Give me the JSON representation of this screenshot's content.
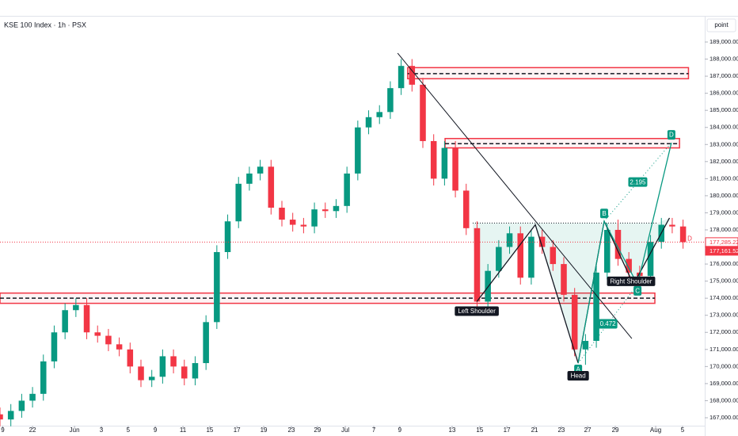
{
  "chart_data": {
    "type": "candlestick",
    "title": "KSE 100 Index · 1h · PSX",
    "scale_unit_button": "point",
    "up_color": "#089981",
    "down_color": "#f23645",
    "x": [
      0,
      4,
      8,
      12,
      16,
      20,
      24,
      28,
      32,
      36,
      40,
      44,
      48,
      52,
      56,
      60,
      64,
      68,
      72,
      76,
      80,
      84,
      88,
      92,
      96,
      100,
      104,
      108,
      112,
      116,
      120,
      124,
      128,
      132,
      136,
      140,
      144,
      148,
      152,
      156,
      160,
      164,
      168,
      172,
      176,
      180,
      184,
      188,
      192,
      196,
      200,
      204,
      208,
      212,
      216,
      220,
      224,
      228,
      232,
      236,
      240,
      244,
      248,
      252
    ],
    "open": [
      167200,
      166900,
      167400,
      168000,
      168400,
      170300,
      172000,
      173300,
      173600,
      172000,
      171800,
      171300,
      171000,
      170000,
      169200,
      169400,
      170600,
      170000,
      169300,
      170200,
      172600,
      176700,
      178500,
      180700,
      181300,
      181700,
      179300,
      178600,
      178300,
      178200,
      179200,
      179100,
      179400,
      181300,
      184000,
      184600,
      184900,
      186300,
      187600,
      186500,
      183200,
      181000,
      182800,
      180300,
      178100,
      173800,
      175600,
      177000,
      177800,
      175200,
      177600,
      177000,
      176000,
      174200,
      171000,
      171500,
      175500,
      178000,
      176300,
      175500,
      175300,
      177300,
      178300,
      178200
    ],
    "high": [
      167600,
      167800,
      168400,
      168800,
      170700,
      172400,
      173700,
      174000,
      174000,
      172400,
      172200,
      171700,
      171400,
      170400,
      169800,
      171000,
      171000,
      170400,
      170600,
      173000,
      177100,
      178900,
      181100,
      181700,
      182100,
      182100,
      179700,
      179000,
      178700,
      179600,
      179600,
      179800,
      181700,
      184400,
      185000,
      185300,
      186700,
      188000,
      188000,
      186900,
      183600,
      183200,
      183200,
      180700,
      178500,
      176000,
      177400,
      178200,
      178200,
      178000,
      178000,
      177400,
      176400,
      174600,
      171900,
      175900,
      178400,
      178600,
      176700,
      175900,
      177700,
      178700,
      178700,
      178600
    ],
    "low": [
      166500,
      166500,
      167000,
      167600,
      168000,
      169900,
      171600,
      172900,
      171600,
      171400,
      170900,
      170600,
      169600,
      168800,
      168800,
      169000,
      169600,
      168900,
      168900,
      169800,
      172200,
      176300,
      178100,
      180300,
      180900,
      178900,
      178200,
      177900,
      177800,
      177800,
      178700,
      178700,
      179000,
      180900,
      183600,
      184200,
      184500,
      185900,
      186100,
      182800,
      180600,
      180600,
      179900,
      177700,
      173400,
      173400,
      175200,
      176600,
      174800,
      174800,
      176600,
      175600,
      173800,
      170600,
      170100,
      171100,
      175100,
      175900,
      175100,
      174900,
      174900,
      176900,
      177800,
      176900
    ],
    "close": [
      166900,
      167400,
      168000,
      168400,
      170300,
      172000,
      173300,
      173600,
      172000,
      171800,
      171300,
      171000,
      170000,
      169200,
      169400,
      170600,
      170000,
      169300,
      170200,
      172600,
      176700,
      178500,
      180700,
      181300,
      181700,
      179300,
      178600,
      178300,
      178200,
      179200,
      179100,
      179400,
      181300,
      184000,
      184600,
      184900,
      186300,
      187600,
      186500,
      183200,
      181000,
      182800,
      180300,
      178100,
      173800,
      175600,
      177000,
      177800,
      175200,
      177600,
      177000,
      176000,
      174200,
      171000,
      171500,
      175500,
      178000,
      176300,
      175500,
      175300,
      177300,
      178300,
      178200,
      177285.22
    ],
    "xlim": [
      0,
      260
    ],
    "xticks": [
      {
        "value": 1,
        "label": "9"
      },
      {
        "value": 12,
        "label": "22"
      },
      {
        "value": 27.5,
        "label": "Jun"
      },
      {
        "value": 37.4,
        "label": "3"
      },
      {
        "value": 47.3,
        "label": "5"
      },
      {
        "value": 57.3,
        "label": "9"
      },
      {
        "value": 67.5,
        "label": "11"
      },
      {
        "value": 77.4,
        "label": "15"
      },
      {
        "value": 87.4,
        "label": "17"
      },
      {
        "value": 97.3,
        "label": "19"
      },
      {
        "value": 107.5,
        "label": "23"
      },
      {
        "value": 117.1,
        "label": "29"
      },
      {
        "value": 127.4,
        "label": "Jul"
      },
      {
        "value": 137.9,
        "label": "7"
      },
      {
        "value": 147.5,
        "label": "9"
      },
      {
        "value": 166.8,
        "label": "13"
      },
      {
        "value": 177,
        "label": "15"
      },
      {
        "value": 187,
        "label": "17"
      },
      {
        "value": 197.2,
        "label": "21"
      },
      {
        "value": 207.1,
        "label": "23"
      },
      {
        "value": 216.8,
        "label": "27"
      },
      {
        "value": 227,
        "label": "29"
      },
      {
        "value": 241.9,
        "label": "Aug"
      },
      {
        "value": 251.8,
        "label": "5"
      }
    ],
    "ylim": [
      166535,
      190439
    ],
    "yticks": [
      {
        "value": 167000,
        "label": "167,000.00"
      },
      {
        "value": 168000,
        "label": "168,000.00"
      },
      {
        "value": 169000,
        "label": "169,000.00"
      },
      {
        "value": 170000,
        "label": "170,000.00"
      },
      {
        "value": 171000,
        "label": "171,000.00"
      },
      {
        "value": 172000,
        "label": "172,000.00"
      },
      {
        "value": 173000,
        "label": "173,000.00"
      },
      {
        "value": 174000,
        "label": "174,000.00"
      },
      {
        "value": 175000,
        "label": "175,000.00"
      },
      {
        "value": 176000,
        "label": "176,000.00"
      },
      {
        "value": 177000,
        "label": "177,000.00"
      },
      {
        "value": 178000,
        "label": "178,000.00"
      },
      {
        "value": 179000,
        "label": "179,000.00"
      },
      {
        "value": 180000,
        "label": "180,000.00"
      },
      {
        "value": 181000,
        "label": "181,000.00"
      },
      {
        "value": 182000,
        "label": "182,000.00"
      },
      {
        "value": 183000,
        "label": "183,000.00"
      },
      {
        "value": 184000,
        "label": "184,000.00"
      },
      {
        "value": 185000,
        "label": "185,000.00"
      },
      {
        "value": 186000,
        "label": "186,000.00"
      },
      {
        "value": 187000,
        "label": "187,000.00"
      },
      {
        "value": 188000,
        "label": "188,000.00"
      },
      {
        "value": 189000,
        "label": "189,000.00"
      }
    ],
    "price_labels": [
      {
        "value": 177285.22,
        "label": "177,285.22"
      },
      {
        "value": 177161.52,
        "label": "177,161.52"
      }
    ],
    "alert_label": "D",
    "zones": [
      {
        "level": 187150,
        "low": 186850,
        "high": 187500,
        "x": [
          150.4,
          254
        ]
      },
      {
        "level": 183050,
        "low": 182800,
        "high": 183350,
        "x": [
          164.2,
          250.7
        ]
      },
      {
        "level": 174000,
        "low": 173700,
        "high": 174300,
        "x": [
          0,
          241.6
        ]
      }
    ],
    "trendline": {
      "x": [
        146.7,
        233.1
      ],
      "y": [
        188350,
        171640
      ]
    },
    "neckline": {
      "level": 178400,
      "x": [
        174.4,
        242.5
      ]
    },
    "hs_path": {
      "x": [
        175.9,
        197.5,
        213.3,
        222.9,
        233.7,
        247
      ],
      "y": [
        173800,
        178300,
        170200,
        178500,
        174800,
        178700
      ]
    },
    "hs_labels": [
      "Left Shoulder",
      "Head",
      "Right Shoulder"
    ],
    "pattern": [
      {
        "label": "A",
        "x": 213.3,
        "y": 170200
      },
      {
        "label": "B",
        "x": 222.9,
        "y": 178500
      },
      {
        "label": "C",
        "x": 235.2,
        "y": 174800
      },
      {
        "label": "D",
        "x": 247.7,
        "y": 183100
      }
    ],
    "ratios": [
      0.472,
      2.195
    ]
  }
}
